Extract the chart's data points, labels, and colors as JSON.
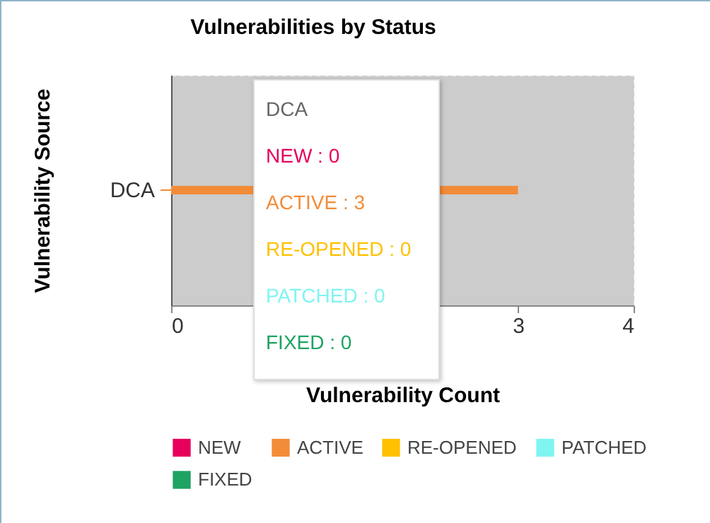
{
  "chart_data": {
    "type": "bar",
    "orientation": "horizontal",
    "stacked": true,
    "title": "Vulnerabilities by Status",
    "xlabel": "Vulnerability Count",
    "ylabel": "Vulnerability Source",
    "categories": [
      "DCA"
    ],
    "series": [
      {
        "name": "NEW",
        "color": "#e6005c",
        "values": [
          0
        ]
      },
      {
        "name": "ACTIVE",
        "color": "#f28c38",
        "values": [
          3
        ]
      },
      {
        "name": "RE-OPENED",
        "color": "#ffc000",
        "values": [
          0
        ]
      },
      {
        "name": "PATCHED",
        "color": "#7ff5f2",
        "values": [
          0
        ]
      },
      {
        "name": "FIXED",
        "color": "#1ea362",
        "values": [
          0
        ]
      }
    ],
    "xlim": [
      0,
      4
    ],
    "xticks": [
      0,
      3,
      4
    ],
    "grid": false,
    "legend": "bottom",
    "annotations": [
      "DCA",
      "NEW : 0",
      "ACTIVE : 3",
      "RE-OPENED : 0",
      "PATCHED : 0",
      "FIXED : 0"
    ]
  }
}
